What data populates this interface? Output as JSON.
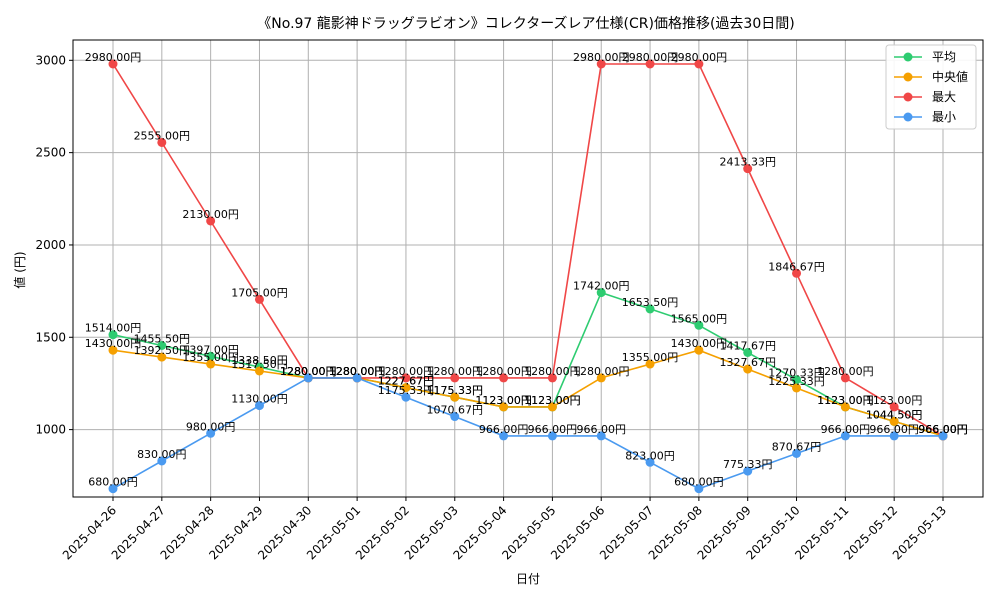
{
  "chart_data": {
    "type": "line",
    "title": "《No.97 龍影神ドラッグラビオン》コレクターズレア仕様(CR)価格推移(過去30日間)",
    "xlabel": "日付",
    "ylabel": "値 (円)",
    "ylim": [
      635,
      3110
    ],
    "yticks": [
      1000,
      1500,
      2000,
      2500,
      3000
    ],
    "grid": true,
    "legend_position": "top-right",
    "value_suffix": "円",
    "categories": [
      "2025-04-26",
      "2025-04-27",
      "2025-04-28",
      "2025-04-29",
      "2025-04-30",
      "2025-05-01",
      "2025-05-02",
      "2025-05-03",
      "2025-05-04",
      "2025-05-05",
      "2025-05-06",
      "2025-05-07",
      "2025-05-08",
      "2025-05-09",
      "2025-05-10",
      "2025-05-11",
      "2025-05-12",
      "2025-05-13"
    ],
    "series": [
      {
        "name": "平均",
        "color": "#2ecc71",
        "values": [
          1514.0,
          1455.5,
          1397.0,
          1338.5,
          1280.0,
          1280.0,
          1227.67,
          1175.33,
          1123.0,
          1123.0,
          1742.0,
          1653.5,
          1565.0,
          1417.67,
          1270.33,
          1123.0,
          1044.5,
          966.0
        ]
      },
      {
        "name": "中央値",
        "color": "#f5a000",
        "values": [
          1430.0,
          1392.5,
          1355.0,
          1317.5,
          1280.0,
          1280.0,
          1227.67,
          1175.33,
          1123.0,
          1123.0,
          1280.0,
          1355.0,
          1430.0,
          1327.67,
          1225.33,
          1123.0,
          1044.5,
          966.0
        ]
      },
      {
        "name": "最大",
        "color": "#f04747",
        "values": [
          2980.0,
          2555.0,
          2130.0,
          1705.0,
          1280.0,
          1280.0,
          1280.0,
          1280.0,
          1280.0,
          1280.0,
          2980.0,
          2980.0,
          2980.0,
          2413.33,
          1846.67,
          1280.0,
          1123.0,
          966.0
        ]
      },
      {
        "name": "最小",
        "color": "#4a9af0",
        "values": [
          680.0,
          830.0,
          980.0,
          1130.0,
          1280.0,
          1280.0,
          1175.33,
          1070.67,
          966.0,
          966.0,
          966.0,
          823.0,
          680.0,
          775.33,
          870.67,
          966.0,
          966.0,
          966.0
        ]
      }
    ]
  }
}
